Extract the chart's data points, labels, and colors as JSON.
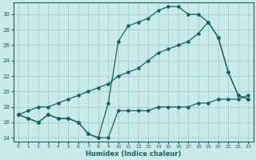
{
  "xlabel": "Humidex (Indice chaleur)",
  "xlim": [
    -0.5,
    23.5
  ],
  "ylim": [
    13.5,
    31.5
  ],
  "yticks": [
    14,
    16,
    18,
    20,
    22,
    24,
    26,
    28,
    30
  ],
  "xticks": [
    0,
    1,
    2,
    3,
    4,
    5,
    6,
    7,
    8,
    9,
    10,
    11,
    12,
    13,
    14,
    15,
    16,
    17,
    18,
    19,
    20,
    21,
    22,
    23
  ],
  "bg_color": "#c8eaea",
  "grid_color": "#9ecece",
  "line_color": "#1a6060",
  "line1_x": [
    0,
    1,
    2,
    3,
    4,
    5,
    6,
    7,
    8,
    9,
    10,
    11,
    12,
    13,
    14,
    15,
    16,
    17,
    18,
    19,
    20,
    21,
    22,
    23
  ],
  "line1_y": [
    17,
    16.5,
    16,
    17,
    16.5,
    16.5,
    16,
    14.5,
    14,
    14,
    17.5,
    17.5,
    17.5,
    17.5,
    18,
    18,
    18,
    18,
    18.5,
    18.5,
    19,
    19,
    19,
    19.5
  ],
  "line2_x": [
    0,
    1,
    2,
    3,
    4,
    5,
    6,
    7,
    8,
    9,
    10,
    11,
    12,
    13,
    14,
    15,
    16,
    17,
    18,
    19,
    20,
    21,
    22,
    23
  ],
  "line2_y": [
    17,
    16.5,
    16,
    17,
    16.5,
    16.5,
    16,
    14.5,
    14,
    18.5,
    26.5,
    28.5,
    29,
    29.5,
    30.5,
    31,
    31,
    30,
    30,
    29,
    27,
    22.5,
    19.5,
    19
  ],
  "line3_x": [
    0,
    1,
    2,
    3,
    4,
    5,
    6,
    7,
    8,
    9,
    10,
    11,
    12,
    13,
    14,
    15,
    16,
    17,
    18,
    19,
    20,
    21,
    22,
    23
  ],
  "line3_y": [
    17,
    17.5,
    18,
    18,
    18.5,
    19,
    19.5,
    20,
    20.5,
    21,
    22,
    22.5,
    23,
    24,
    25,
    25.5,
    26,
    26.5,
    27.5,
    29,
    27,
    22.5,
    19.5,
    19
  ]
}
